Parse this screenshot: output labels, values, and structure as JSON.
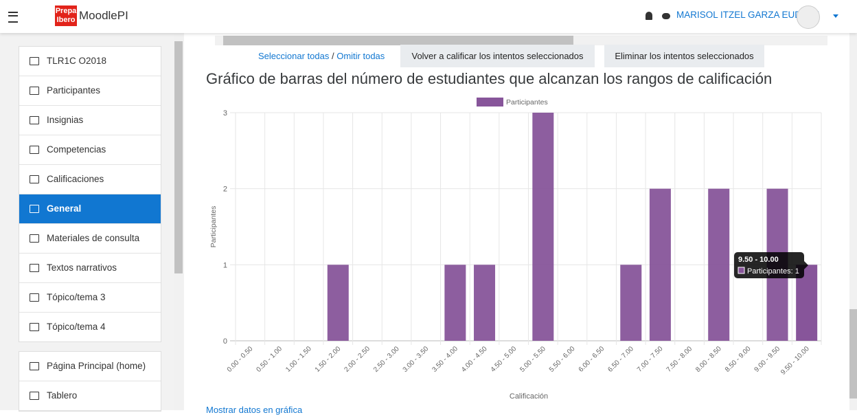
{
  "header": {
    "brand": "MoodlePI",
    "logo_top": "Prepa",
    "logo_bottom": "Ibero",
    "user": "MARISOL ITZEL GARZA EUDAVE"
  },
  "sidebar": {
    "course": [
      "TLR1C O2018",
      "Participantes",
      "Insignias",
      "Competencias",
      "Calificaciones",
      "General",
      "Materiales de consulta",
      "Textos narrativos",
      "Tópico/tema 3",
      "Tópico/tema 4"
    ],
    "site": [
      "Página Principal (home)",
      "Tablero"
    ]
  },
  "actions": {
    "select_all": "Seleccionar todas",
    "separator": "/",
    "select_none": "Omitir todas",
    "regrade": "Volver a calificar los intentos seleccionados",
    "delete": "Eliminar los intentos seleccionados"
  },
  "heading": "Gráfico de barras del número de estudiantes que alcanzan los rangos de calificación",
  "chart_data": {
    "type": "bar",
    "x_label": "Calificación",
    "y_label": "Participantes",
    "categories": [
      "0.00 - 0.50",
      "0.50 - 1.00",
      "1.00 - 1.50",
      "1.50 - 2.00",
      "2.00 - 2.50",
      "2.50 - 3.00",
      "3.00 - 3.50",
      "3.50 - 4.00",
      "4.00 - 4.50",
      "4.50 - 5.00",
      "5.00 - 5.50",
      "5.50 - 6.00",
      "6.00 - 6.50",
      "6.50 - 7.00",
      "7.00 - 7.50",
      "7.50 - 8.00",
      "8.00 - 8.50",
      "8.50 - 9.00",
      "9.00 - 9.50",
      "9.50 - 10.00"
    ],
    "series": [
      {
        "name": "Participantes",
        "color": "#87559a",
        "values": [
          0,
          0,
          0,
          1,
          0,
          0,
          0,
          1,
          1,
          0,
          3,
          0,
          0,
          1,
          2,
          0,
          2,
          0,
          2,
          1
        ]
      }
    ],
    "ylim": [
      0,
      3
    ],
    "yticks": [
      0,
      1,
      2,
      3
    ],
    "grid": true,
    "legend": "top",
    "tooltip": {
      "title": "9.50 - 10.00",
      "text": "Participantes: 1"
    }
  },
  "footer_link": "Mostrar datos en gráfica"
}
